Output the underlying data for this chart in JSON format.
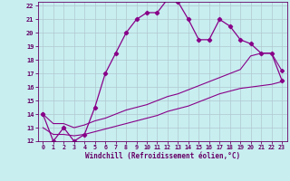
{
  "xlabel": "Windchill (Refroidissement éolien,°C)",
  "xlim": [
    -0.5,
    23.5
  ],
  "ylim": [
    12,
    22.3
  ],
  "yticks": [
    12,
    13,
    14,
    15,
    16,
    17,
    18,
    19,
    20,
    21,
    22
  ],
  "xticks": [
    0,
    1,
    2,
    3,
    4,
    5,
    6,
    7,
    8,
    9,
    10,
    11,
    12,
    13,
    14,
    15,
    16,
    17,
    18,
    19,
    20,
    21,
    22,
    23
  ],
  "bg_color": "#c8eef0",
  "line_color": "#880088",
  "grid_color": "#b0c8d0",
  "curve1_x": [
    0,
    1,
    2,
    3,
    4,
    5,
    6,
    7,
    8,
    9,
    10,
    11,
    12,
    13,
    14,
    15,
    16,
    17,
    18,
    19,
    20,
    21,
    22,
    23
  ],
  "curve1_y": [
    14,
    12,
    13,
    12,
    12.5,
    14.5,
    17,
    18.5,
    20,
    21,
    21.5,
    21.5,
    22.5,
    22.3,
    21,
    19.5,
    19.5,
    21,
    20.5,
    19.5,
    19.2,
    18.5,
    18.5,
    16.5
  ],
  "curve2_x": [
    0,
    1,
    2,
    3,
    4,
    5,
    6,
    7,
    8,
    9,
    10,
    11,
    12,
    13,
    14,
    15,
    16,
    17,
    18,
    19,
    20,
    21,
    22,
    23
  ],
  "curve2_y": [
    14,
    13.3,
    13.3,
    13.0,
    13.2,
    13.5,
    13.7,
    14.0,
    14.3,
    14.5,
    14.7,
    15.0,
    15.3,
    15.5,
    15.8,
    16.1,
    16.4,
    16.7,
    17.0,
    17.3,
    18.3,
    18.5,
    18.5,
    17.2
  ],
  "curve3_x": [
    0,
    1,
    2,
    3,
    4,
    5,
    6,
    7,
    8,
    9,
    10,
    11,
    12,
    13,
    14,
    15,
    16,
    17,
    18,
    19,
    20,
    21,
    22,
    23
  ],
  "curve3_y": [
    13.0,
    12.5,
    12.5,
    12.4,
    12.5,
    12.7,
    12.9,
    13.1,
    13.3,
    13.5,
    13.7,
    13.9,
    14.2,
    14.4,
    14.6,
    14.9,
    15.2,
    15.5,
    15.7,
    15.9,
    16.0,
    16.1,
    16.2,
    16.4
  ]
}
